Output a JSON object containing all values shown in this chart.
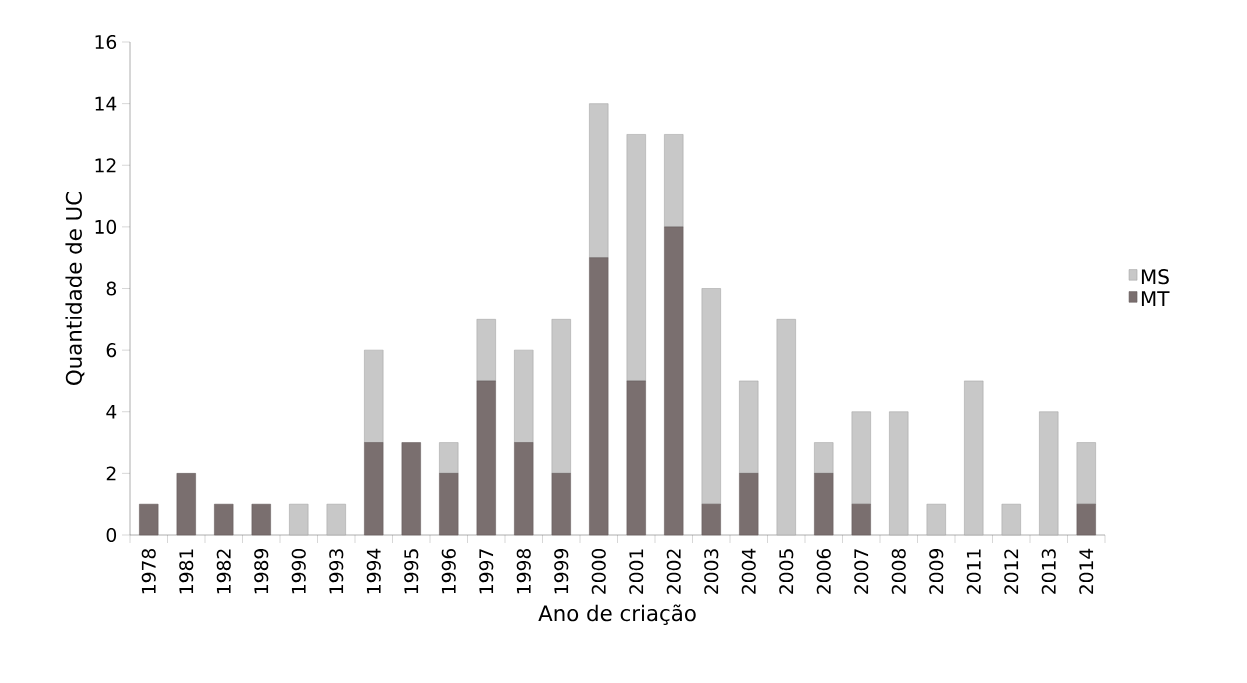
{
  "chart_data": {
    "type": "bar",
    "stacked": true,
    "xlabel": "Ano de criação",
    "ylabel": "Quantidade de UC",
    "categories": [
      "1978",
      "1981",
      "1982",
      "1989",
      "1990",
      "1993",
      "1994",
      "1995",
      "1996",
      "1997",
      "1998",
      "1999",
      "2000",
      "2001",
      "2002",
      "2003",
      "2004",
      "2005",
      "2006",
      "2007",
      "2008",
      "2009",
      "2011",
      "2012",
      "2013",
      "2014"
    ],
    "series": [
      {
        "name": "MT",
        "color": "#7a6f6f",
        "values": [
          1,
          2,
          1,
          1,
          0,
          0,
          3,
          3,
          2,
          5,
          3,
          2,
          9,
          5,
          10,
          1,
          2,
          0,
          2,
          1,
          0,
          0,
          0,
          0,
          0,
          1
        ]
      },
      {
        "name": "MS",
        "color": "#c8c8c8",
        "values": [
          0,
          0,
          0,
          0,
          1,
          1,
          3,
          0,
          1,
          2,
          3,
          5,
          5,
          8,
          3,
          7,
          3,
          7,
          1,
          3,
          4,
          1,
          5,
          1,
          4,
          2
        ]
      }
    ],
    "ylim": [
      0,
      16
    ],
    "yticks": [
      0,
      2,
      4,
      6,
      8,
      10,
      12,
      14,
      16
    ],
    "legend": "right"
  }
}
